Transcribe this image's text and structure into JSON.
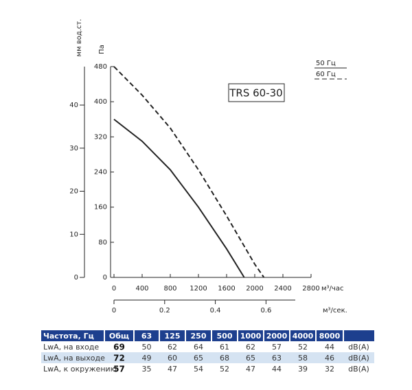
{
  "chart_data": {
    "type": "line",
    "x_label": "м³/час",
    "y_label": "Па",
    "y2_label": "мм вод.ст.",
    "x2_label": "м³/сек.",
    "annotation": "TRS 60-30",
    "xlim": [
      0,
      2800
    ],
    "xticks": [
      0,
      400,
      800,
      1200,
      1600,
      2000,
      2400,
      2800
    ],
    "ylim": [
      0,
      480
    ],
    "yticks": [
      0,
      80,
      160,
      240,
      320,
      400,
      480
    ],
    "y2lim": [
      0,
      48.93
    ],
    "y2ticks": [
      0,
      10,
      20,
      30,
      40
    ],
    "x2lim": [
      0,
      0.7778
    ],
    "x2ticks": [
      0,
      0.2,
      0.4,
      0.6
    ],
    "series": [
      {
        "name": "50 Гц",
        "color": "#222222",
        "dash": false,
        "x": [
          0,
          400,
          800,
          1200,
          1600,
          1850
        ],
        "values": [
          360,
          310,
          245,
          160,
          65,
          0
        ]
      },
      {
        "name": "60 Гц",
        "color": "#222222",
        "dash": true,
        "x": [
          0,
          400,
          800,
          1200,
          1600,
          2000,
          2130
        ],
        "values": [
          480,
          415,
          340,
          245,
          140,
          30,
          0
        ]
      }
    ]
  },
  "table": {
    "header": [
      "Частота, Гц",
      "Общ",
      "63",
      "125",
      "250",
      "500",
      "1000",
      "2000",
      "4000",
      "8000"
    ],
    "rows": [
      [
        "LwA, на входе",
        69,
        50,
        62,
        64,
        61,
        62,
        57,
        52,
        44,
        "dB(A)"
      ],
      [
        "LwA, на выходе",
        72,
        49,
        60,
        65,
        68,
        65,
        63,
        58,
        46,
        "dB(A)"
      ],
      [
        "LwA, к окружению",
        57,
        35,
        47,
        54,
        52,
        47,
        44,
        39,
        32,
        "dB(A)"
      ]
    ]
  }
}
